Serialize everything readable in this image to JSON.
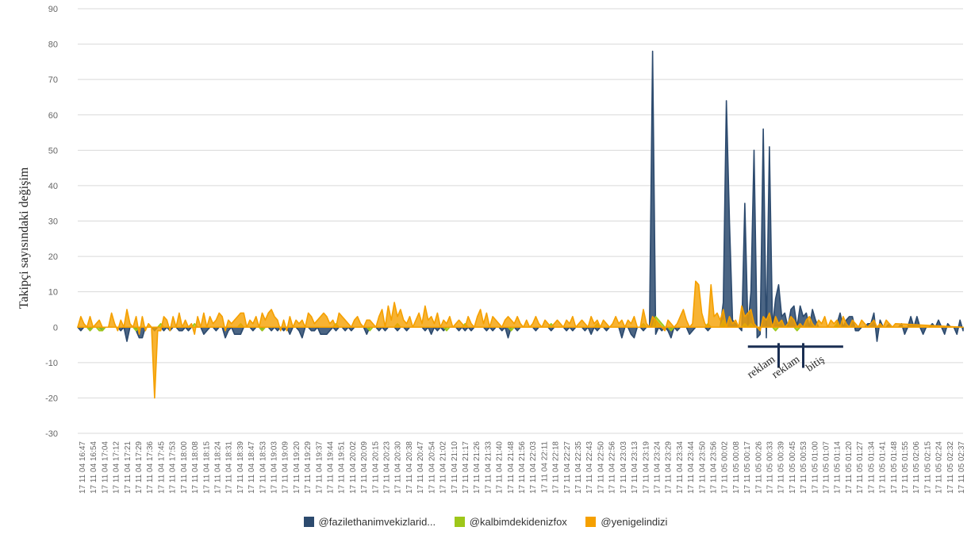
{
  "chart_data": {
    "type": "area",
    "ylabel": "Takipçi sayısındaki değişim",
    "ylim": [
      -30,
      90
    ],
    "yticks": [
      90,
      80,
      70,
      60,
      50,
      40,
      30,
      20,
      10,
      0,
      -10,
      -20,
      -30
    ],
    "grid": true,
    "legend_position": "bottom",
    "x_tick_labels": [
      "17 11 04 16:47",
      "17 11 04 16:54",
      "17 11 04 17:04",
      "17 11 04 17:12",
      "17 11 04 17:21",
      "17 11 04 17:29",
      "17 11 04 17:36",
      "17 11 04 17:45",
      "17 11 04 17:53",
      "17 11 04 18:00",
      "17 11 04 18:08",
      "17 11 04 18:15",
      "17 11 04 18:24",
      "17 11 04 18:31",
      "17 11 04 18:39",
      "17 11 04 18:47",
      "17 11 04 18:53",
      "17 11 04 19:03",
      "17 11 04 19:09",
      "17 11 04 19:20",
      "17 11 04 19:29",
      "17 11 04 19:37",
      "17 11 04 19:44",
      "17 11 04 19:51",
      "17 11 04 20:02",
      "17 11 04 20:09",
      "17 11 04 20:15",
      "17 11 04 20:23",
      "17 11 04 20:30",
      "17 11 04 20:38",
      "17 11 04 20:47",
      "17 11 04 20:54",
      "17 11 04 21:02",
      "17 11 04 21:10",
      "17 11 04 21:17",
      "17 11 04 21:26",
      "17 11 04 21:33",
      "17 11 04 21:40",
      "17 11 04 21:48",
      "17 11 04 21:56",
      "17 11 04 22:03",
      "17 11 04 22:11",
      "17 11 04 22:18",
      "17 11 04 22:27",
      "17 11 04 22:35",
      "17 11 04 22:43",
      "17 11 04 22:50",
      "17 11 04 22:56",
      "17 11 04 23:03",
      "17 11 04 23:13",
      "17 11 04 23:19",
      "17 11 04 23:24",
      "17 11 04 23:29",
      "17 11 04 23:34",
      "17 11 04 23:44",
      "17 11 04 23:50",
      "17 11 04 23:56",
      "17 11 05 00:02",
      "17 11 05 00:08",
      "17 11 05 00:17",
      "17 11 05 00:26",
      "17 11 05 00:33",
      "17 11 05 00:39",
      "17 11 05 00:45",
      "17 11 05 00:53",
      "17 11 05 01:00",
      "17 11 05 01:07",
      "17 11 05 01:14",
      "17 11 05 01:20",
      "17 11 05 01:27",
      "17 11 05 01:34",
      "17 11 05 01:41",
      "17 11 05 01:48",
      "17 11 05 01:55",
      "17 11 05 02:06",
      "17 11 05 02:15",
      "17 11 05 02:24",
      "17 11 05 02:32",
      "17 11 05 02:37"
    ],
    "series": [
      {
        "name": "@fazilethanimvekizlarid...",
        "color": "#2c4a6e",
        "values": [
          0,
          -1,
          0,
          0,
          -1,
          0,
          0,
          0,
          -1,
          0,
          0,
          0,
          0,
          0,
          -1,
          0,
          -4,
          0,
          0,
          -1,
          -3,
          -3,
          0,
          0,
          0,
          -1,
          0,
          0,
          -1,
          0,
          -1,
          0,
          0,
          -1,
          -1,
          0,
          -1,
          0,
          0,
          0,
          0,
          -2,
          -1,
          0,
          0,
          -1,
          0,
          0,
          -3,
          -1,
          0,
          -2,
          -2,
          -2,
          0,
          0,
          0,
          -1,
          0,
          0,
          -1,
          0,
          0,
          -1,
          0,
          -1,
          0,
          -1,
          0,
          -2,
          0,
          0,
          -1,
          -3,
          0,
          0,
          -1,
          -1,
          0,
          -2,
          -2,
          -2,
          -1,
          0,
          -1,
          0,
          0,
          -1,
          0,
          -1,
          0,
          0,
          0,
          0,
          -2,
          0,
          0,
          0,
          -1,
          0,
          -1,
          0,
          0,
          0,
          -1,
          0,
          0,
          -1,
          0,
          0,
          0,
          0,
          0,
          -1,
          0,
          -2,
          0,
          -1,
          0,
          -1,
          0,
          0,
          0,
          0,
          -1,
          0,
          -1,
          0,
          -1,
          0,
          0,
          0,
          0,
          -1,
          0,
          -1,
          0,
          0,
          -1,
          0,
          -3,
          0,
          0,
          -1,
          0,
          0,
          0,
          0,
          0,
          -1,
          0,
          0,
          0,
          0,
          -1,
          0,
          0,
          0,
          0,
          -1,
          0,
          -1,
          0,
          0,
          0,
          -1,
          0,
          -2,
          0,
          -1,
          0,
          0,
          -1,
          0,
          0,
          0,
          0,
          -3,
          0,
          0,
          -2,
          -3,
          0,
          0,
          -1,
          0,
          0,
          78,
          -2,
          0,
          -1,
          0,
          -1,
          -3,
          0,
          -1,
          0,
          0,
          0,
          -2,
          -1,
          0,
          0,
          0,
          0,
          -1,
          0,
          0,
          0,
          0,
          7,
          64,
          30,
          2,
          1,
          0,
          -1,
          35,
          0,
          10,
          50,
          -3,
          -2,
          56,
          -3,
          51,
          0,
          8,
          12,
          3,
          4,
          0,
          5,
          6,
          0,
          6,
          3,
          4,
          0,
          5,
          2,
          0,
          0,
          0,
          0,
          0,
          0,
          1,
          4,
          0,
          2,
          3,
          3,
          -1,
          -1,
          0,
          0,
          1,
          1,
          4,
          -4,
          2,
          0,
          0,
          1,
          0,
          0,
          0,
          1,
          -2,
          0,
          3,
          0,
          3,
          0,
          -2,
          0,
          0,
          1,
          0,
          2,
          0,
          -2,
          1,
          0,
          0,
          -2,
          2,
          -1
        ]
      },
      {
        "name": "@kalbimdekidenizfox",
        "color": "#9ec71a",
        "values": [
          0,
          0,
          0,
          0,
          -1,
          0,
          0,
          -1,
          -1,
          0,
          0,
          0,
          0,
          0,
          0,
          0,
          0,
          0,
          0,
          -1,
          0,
          0,
          0,
          0,
          0,
          0,
          0,
          1,
          0,
          0,
          0,
          0,
          0,
          0,
          0,
          0,
          0,
          0,
          1,
          0,
          0,
          0,
          0,
          0,
          0,
          0,
          0,
          0,
          0,
          0,
          0,
          0,
          0,
          1,
          0,
          0,
          0,
          0,
          0,
          0,
          -1,
          0,
          0,
          0,
          0,
          0,
          0,
          0,
          0,
          0,
          0,
          0,
          0,
          0,
          0,
          0,
          0,
          0,
          0,
          0,
          0,
          0,
          0,
          0,
          1,
          0,
          0,
          0,
          0,
          0,
          0,
          0,
          0,
          0,
          0,
          -1,
          0,
          0,
          0,
          0,
          0,
          0,
          0,
          0,
          1,
          0,
          0,
          0,
          0,
          0,
          0,
          0,
          0,
          0,
          0,
          0,
          0,
          0,
          0,
          0,
          -1,
          0,
          0,
          0,
          0,
          0,
          1,
          0,
          0,
          0,
          0,
          0,
          0,
          0,
          0,
          0,
          0,
          0,
          0,
          0,
          0,
          -1,
          0,
          0,
          0,
          0,
          0,
          0,
          0,
          0,
          0,
          0,
          0,
          0,
          1,
          0,
          0,
          0,
          0,
          0,
          0,
          0,
          0,
          0,
          0,
          0,
          0,
          0,
          0,
          1,
          0,
          0,
          0,
          0,
          0,
          0,
          0,
          0,
          0,
          0,
          0,
          0,
          0,
          0,
          1,
          0,
          0,
          0,
          3,
          2,
          1,
          0,
          0,
          -1,
          0,
          0,
          0,
          0,
          0,
          0,
          0,
          0,
          0,
          0,
          0,
          1,
          0,
          0,
          0,
          0,
          2,
          0,
          0,
          0,
          0,
          0,
          0,
          1,
          0,
          1,
          0,
          0,
          0,
          0,
          0,
          0,
          0,
          -1,
          0,
          0,
          0,
          0,
          0,
          0,
          -1,
          0,
          0,
          0,
          0,
          0,
          0,
          0,
          0,
          0,
          0,
          0,
          0,
          1,
          0,
          0,
          0,
          0,
          0,
          0,
          0,
          0,
          0,
          0,
          0,
          0,
          0,
          0,
          0,
          0,
          0,
          0,
          0,
          0,
          0,
          0,
          0,
          0,
          0,
          0,
          0,
          0,
          0,
          0,
          0,
          0
        ]
      },
      {
        "name": "@yenigelindizi",
        "color": "#f5a000",
        "values": [
          0,
          3,
          1,
          0,
          3,
          0,
          1,
          2,
          0,
          0,
          0,
          4,
          1,
          -1,
          2,
          0,
          5,
          1,
          0,
          3,
          -2,
          3,
          -1,
          1,
          0,
          -20,
          -1,
          -1,
          3,
          2,
          -1,
          3,
          0,
          4,
          0,
          2,
          0,
          1,
          -2,
          3,
          0,
          4,
          0,
          3,
          1,
          2,
          4,
          3,
          -1,
          2,
          1,
          2,
          3,
          4,
          4,
          0,
          2,
          1,
          3,
          0,
          4,
          2,
          4,
          5,
          3,
          2,
          -1,
          2,
          -1,
          3,
          0,
          2,
          1,
          2,
          0,
          4,
          3,
          1,
          2,
          3,
          4,
          3,
          1,
          2,
          0,
          4,
          3,
          2,
          1,
          0,
          2,
          3,
          1,
          0,
          2,
          2,
          1,
          0,
          3,
          5,
          0,
          6,
          2,
          7,
          3,
          5,
          2,
          1,
          3,
          0,
          2,
          4,
          1,
          6,
          2,
          3,
          1,
          4,
          0,
          2,
          1,
          3,
          0,
          1,
          2,
          1,
          0,
          3,
          1,
          0,
          3,
          5,
          1,
          4,
          0,
          3,
          2,
          1,
          0,
          2,
          3,
          2,
          1,
          3,
          1,
          0,
          2,
          0,
          1,
          3,
          1,
          0,
          2,
          1,
          0,
          1,
          2,
          1,
          0,
          2,
          1,
          3,
          0,
          1,
          2,
          1,
          0,
          3,
          1,
          2,
          0,
          2,
          1,
          0,
          1,
          3,
          1,
          2,
          0,
          2,
          1,
          3,
          0,
          0,
          5,
          1,
          0,
          3,
          2,
          1,
          0,
          -1,
          2,
          1,
          0,
          1,
          3,
          5,
          2,
          0,
          1,
          13,
          12,
          4,
          1,
          0,
          12,
          3,
          4,
          2,
          5,
          0,
          3,
          1,
          2,
          0,
          6,
          3,
          4,
          5,
          1,
          0,
          -1,
          3,
          2,
          4,
          0,
          3,
          1,
          2,
          0,
          1,
          3,
          2,
          0,
          1,
          0,
          2,
          3,
          1,
          0,
          2,
          1,
          3,
          0,
          2,
          1,
          2,
          0,
          3,
          1,
          0,
          2,
          1,
          0,
          2,
          1,
          0,
          1,
          2,
          0,
          1,
          0,
          2,
          1,
          0,
          1
        ]
      }
    ],
    "annotations": [
      {
        "text": "reklam",
        "index": 226
      },
      {
        "text": "reklam",
        "index": 234
      },
      {
        "text": "bitiş",
        "index": 242
      }
    ],
    "annotation_bar": {
      "start_index": 218,
      "end_index": 249,
      "value": -5.5,
      "tick_indices": [
        228,
        236
      ]
    }
  }
}
